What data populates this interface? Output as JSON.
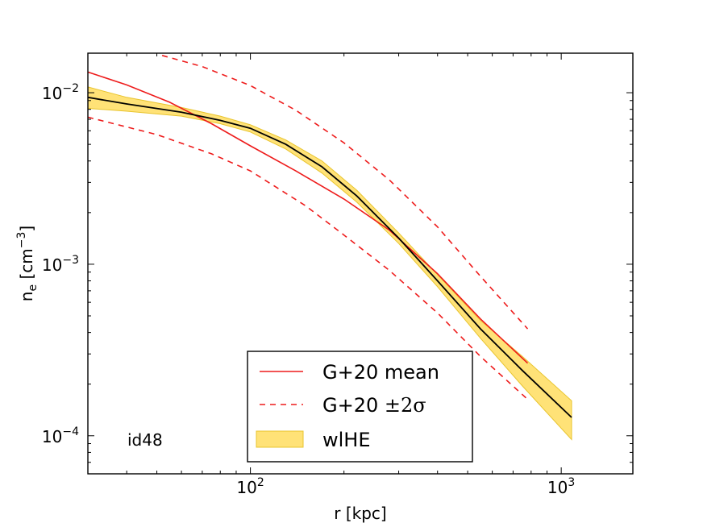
{
  "chart_data": {
    "type": "line",
    "x_scale": "log",
    "y_scale": "log",
    "xlim": [
      30,
      1700
    ],
    "ylim": [
      6e-05,
      0.017
    ],
    "xlabel": "r [kpc]",
    "ylabel": {
      "base": "n",
      "sub": "e",
      "unit_open": " [cm",
      "unit_sup": "−3",
      "unit_close": "]"
    },
    "x_ticks": [
      {
        "value": 100,
        "base": "10",
        "exp": "2"
      },
      {
        "value": 1000,
        "base": "10",
        "exp": "3"
      }
    ],
    "y_ticks": [
      {
        "value": 0.0001,
        "base": "10",
        "exp": "−4"
      },
      {
        "value": 0.001,
        "base": "10",
        "exp": "−3"
      },
      {
        "value": 0.01,
        "base": "10",
        "exp": "−2"
      }
    ],
    "annotation": "id48",
    "colors": {
      "mean": "#ee1c1c",
      "band": "#ffd84a",
      "band_edge": "#e8c42e",
      "median": "#000000"
    },
    "series": [
      {
        "name": "G+20 mean",
        "style": "solid",
        "color": "#ee1c1c",
        "x": [
          30,
          40,
          55,
          75,
          100,
          140,
          200,
          280,
          400,
          550,
          780
        ],
        "y": [
          0.0132,
          0.0111,
          0.0088,
          0.0066,
          0.0049,
          0.0035,
          0.0024,
          0.00158,
          0.00088,
          0.00048,
          0.000265
        ]
      },
      {
        "name": "G+20 upper 2σ",
        "style": "dashed",
        "color": "#ee1c1c",
        "x": [
          52,
          70,
          100,
          140,
          200,
          280,
          400,
          550,
          780
        ],
        "y": [
          0.0165,
          0.0142,
          0.011,
          0.0079,
          0.0051,
          0.0031,
          0.00165,
          0.00085,
          0.00042
        ]
      },
      {
        "name": "G+20 lower 2σ",
        "style": "dashed",
        "color": "#ee1c1c",
        "x": [
          30,
          50,
          75,
          100,
          150,
          200,
          280,
          400,
          550,
          780
        ],
        "y": [
          0.0072,
          0.0057,
          0.0044,
          0.0035,
          0.0022,
          0.00148,
          0.00092,
          0.00052,
          0.00029,
          0.000163
        ]
      },
      {
        "name": "wlHE median",
        "style": "solid",
        "color": "#000000",
        "x": [
          30,
          40,
          60,
          80,
          100,
          130,
          170,
          220,
          300,
          400,
          550,
          750,
          1080
        ],
        "y": [
          0.0094,
          0.0086,
          0.0077,
          0.0069,
          0.0062,
          0.005,
          0.0037,
          0.0025,
          0.00142,
          0.0008,
          0.00042,
          0.00024,
          0.000128
        ]
      }
    ],
    "band": {
      "name": "wlHE",
      "x": [
        30,
        40,
        60,
        80,
        100,
        130,
        170,
        220,
        300,
        400,
        550,
        750,
        1080
      ],
      "y_low": [
        0.0081,
        0.0078,
        0.0073,
        0.0066,
        0.0059,
        0.0047,
        0.0034,
        0.0023,
        0.00132,
        0.00074,
        0.00037,
        0.000195,
        9.5e-05
      ],
      "y_high": [
        0.0108,
        0.0094,
        0.0082,
        0.0073,
        0.0065,
        0.0053,
        0.004,
        0.0027,
        0.00152,
        0.00087,
        0.00047,
        0.00029,
        0.00016
      ]
    },
    "legend": {
      "placement": "lower-center",
      "entries": [
        {
          "label": "G+20 mean",
          "kind": "solid"
        },
        {
          "label_prefix": "G+20 ",
          "label_math": "±2σ",
          "kind": "dashed"
        },
        {
          "label": "wlHE",
          "kind": "band"
        }
      ]
    }
  }
}
